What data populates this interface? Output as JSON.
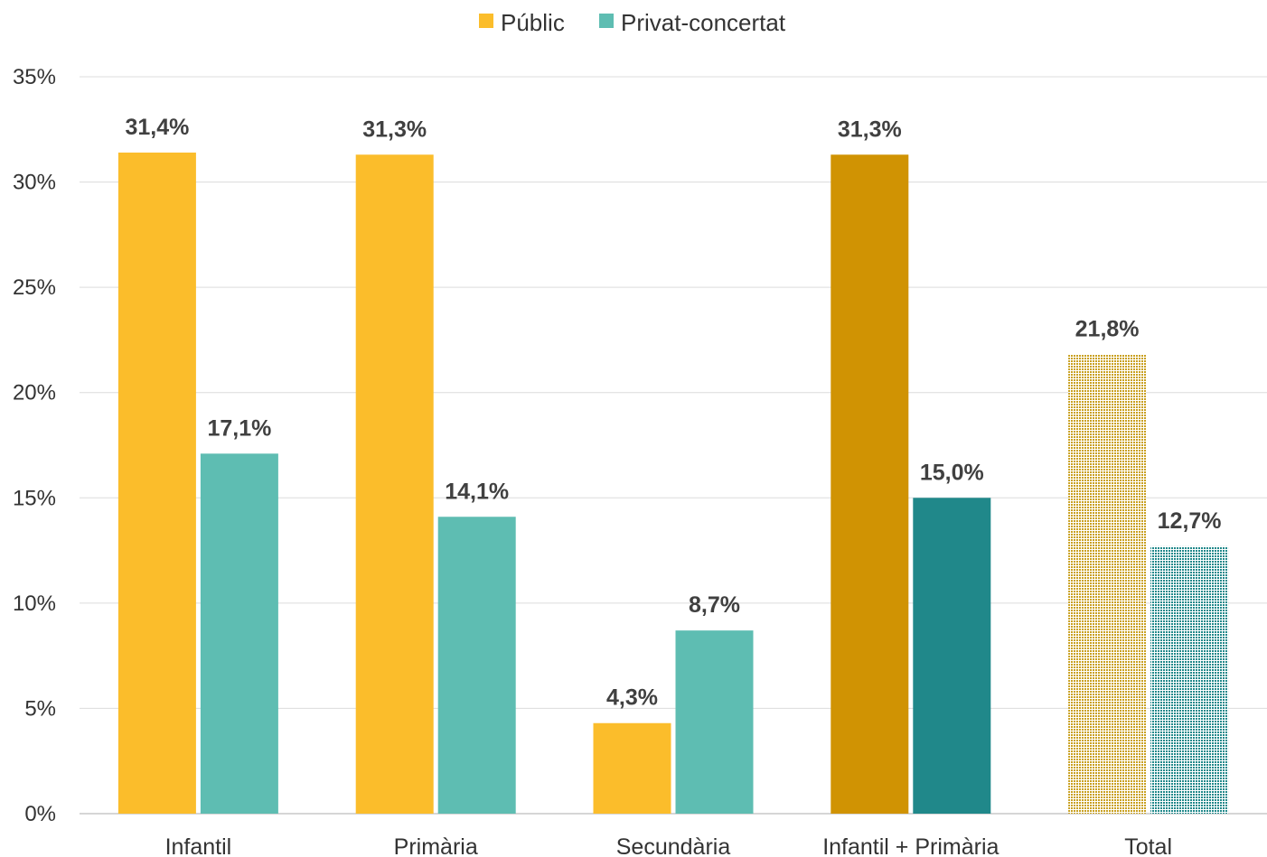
{
  "chart_data": {
    "type": "bar",
    "categories": [
      "Infantil",
      "Primària",
      "Secundària",
      "Infantil + Primària",
      "Total"
    ],
    "series": [
      {
        "name": "Públic",
        "values": [
          31.4,
          31.3,
          4.3,
          31.3,
          21.8
        ],
        "labels": [
          "31,4%",
          "31,3%",
          "4,3%",
          "31,3%",
          "21,8%"
        ],
        "colors": [
          "#FBBD2B",
          "#FBBD2B",
          "#FBBD2B",
          "#D09303",
          "#D4A020"
        ],
        "patterned": [
          false,
          false,
          false,
          false,
          true
        ]
      },
      {
        "name": "Privat-concertat",
        "values": [
          17.1,
          14.1,
          8.7,
          15.0,
          12.7
        ],
        "labels": [
          "17,1%",
          "14,1%",
          "8,7%",
          "15,0%",
          "12,7%"
        ],
        "colors": [
          "#5EBDB2",
          "#5EBDB2",
          "#5EBDB2",
          "#20888A",
          "#20888A"
        ],
        "patterned": [
          false,
          false,
          false,
          false,
          true
        ]
      }
    ],
    "legend_colors": [
      "#FBBD2B",
      "#5EBDB2"
    ],
    "yticks": [
      "0%",
      "5%",
      "10%",
      "15%",
      "20%",
      "25%",
      "30%",
      "35%"
    ],
    "ylim": [
      0,
      35
    ],
    "grid": true,
    "legend_position": "top-center",
    "title": "",
    "xlabel": "",
    "ylabel": ""
  }
}
